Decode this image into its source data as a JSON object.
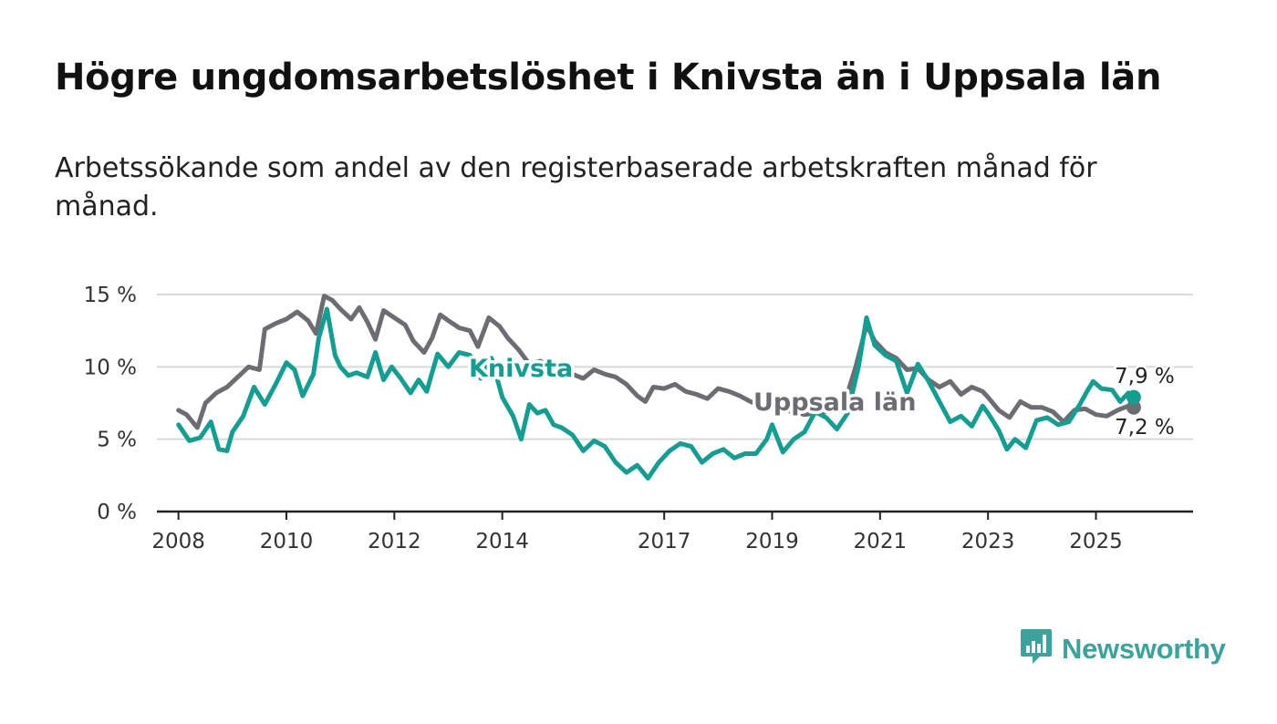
{
  "title": "Högre ungdomsarbetslöshet i Knivsta än i Uppsala län",
  "subtitle": "Arbetssökande som andel av den registerbaserade arbetskraften månad för månad.",
  "brand": {
    "name": "Newsworthy",
    "icon": "newsworthy-logo-icon"
  },
  "colors": {
    "knivsta": "#139e92",
    "uppsala": "#6e6c73",
    "axis": "#222222",
    "grid": "#d9d9d9"
  },
  "chart_data": {
    "type": "line",
    "title": "Högre ungdomsarbetslöshet i Knivsta än i Uppsala län",
    "xlabel": "",
    "ylabel": "",
    "ylim": [
      0,
      15
    ],
    "xlim": [
      2007.6,
      2026.8
    ],
    "y_ticks": [
      {
        "value": 0,
        "label": "0 %"
      },
      {
        "value": 5,
        "label": "5 %"
      },
      {
        "value": 10,
        "label": "10 %"
      },
      {
        "value": 15,
        "label": "15 %"
      }
    ],
    "x_ticks": [
      {
        "value": 2008,
        "label": "2008"
      },
      {
        "value": 2010,
        "label": "2010"
      },
      {
        "value": 2012,
        "label": "2012"
      },
      {
        "value": 2014,
        "label": "2014"
      },
      {
        "value": 2017,
        "label": "2017"
      },
      {
        "value": 2019,
        "label": "2019"
      },
      {
        "value": 2021,
        "label": "2021"
      },
      {
        "value": 2023,
        "label": "2023"
      },
      {
        "value": 2025,
        "label": "2025"
      }
    ],
    "grid": true,
    "series": [
      {
        "name": "Knivsta",
        "color": "#139e92",
        "end_label": "7,9 %",
        "end_value": 7.9,
        "points": [
          [
            2008.0,
            6.0
          ],
          [
            2008.2,
            4.9
          ],
          [
            2008.4,
            5.1
          ],
          [
            2008.6,
            6.2
          ],
          [
            2008.75,
            4.3
          ],
          [
            2008.9,
            4.2
          ],
          [
            2009.0,
            5.5
          ],
          [
            2009.2,
            6.6
          ],
          [
            2009.4,
            8.6
          ],
          [
            2009.6,
            7.4
          ],
          [
            2009.8,
            8.8
          ],
          [
            2010.0,
            10.3
          ],
          [
            2010.15,
            9.8
          ],
          [
            2010.3,
            8.0
          ],
          [
            2010.5,
            9.5
          ],
          [
            2010.6,
            12.0
          ],
          [
            2010.75,
            14.0
          ],
          [
            2010.9,
            10.8
          ],
          [
            2011.0,
            10.0
          ],
          [
            2011.15,
            9.4
          ],
          [
            2011.3,
            9.6
          ],
          [
            2011.5,
            9.3
          ],
          [
            2011.65,
            11.0
          ],
          [
            2011.8,
            9.1
          ],
          [
            2011.95,
            10.0
          ],
          [
            2012.1,
            9.3
          ],
          [
            2012.3,
            8.2
          ],
          [
            2012.45,
            9.1
          ],
          [
            2012.6,
            8.3
          ],
          [
            2012.8,
            10.9
          ],
          [
            2013.0,
            10.0
          ],
          [
            2013.2,
            11.0
          ],
          [
            2013.4,
            10.8
          ],
          [
            2013.6,
            9.2
          ],
          [
            2013.8,
            10.6
          ],
          [
            2014.0,
            7.9
          ],
          [
            2014.2,
            6.6
          ],
          [
            2014.35,
            5.0
          ],
          [
            2014.5,
            7.4
          ],
          [
            2014.65,
            6.8
          ],
          [
            2014.8,
            7.0
          ],
          [
            2014.95,
            6.0
          ],
          [
            2015.1,
            5.8
          ],
          [
            2015.3,
            5.3
          ],
          [
            2015.5,
            4.2
          ],
          [
            2015.7,
            4.9
          ],
          [
            2015.9,
            4.5
          ],
          [
            2016.1,
            3.4
          ],
          [
            2016.3,
            2.7
          ],
          [
            2016.5,
            3.2
          ],
          [
            2016.7,
            2.3
          ],
          [
            2016.9,
            3.4
          ],
          [
            2017.1,
            4.2
          ],
          [
            2017.3,
            4.7
          ],
          [
            2017.5,
            4.5
          ],
          [
            2017.7,
            3.4
          ],
          [
            2017.9,
            4.0
          ],
          [
            2018.1,
            4.3
          ],
          [
            2018.3,
            3.7
          ],
          [
            2018.5,
            4.0
          ],
          [
            2018.7,
            4.0
          ],
          [
            2018.9,
            5.0
          ],
          [
            2019.0,
            6.0
          ],
          [
            2019.2,
            4.1
          ],
          [
            2019.4,
            5.0
          ],
          [
            2019.6,
            5.5
          ],
          [
            2019.8,
            6.9
          ],
          [
            2020.0,
            6.5
          ],
          [
            2020.2,
            5.7
          ],
          [
            2020.4,
            6.8
          ],
          [
            2020.6,
            10.0
          ],
          [
            2020.75,
            13.4
          ],
          [
            2020.9,
            11.5
          ],
          [
            2021.1,
            10.8
          ],
          [
            2021.3,
            10.4
          ],
          [
            2021.5,
            8.2
          ],
          [
            2021.7,
            10.2
          ],
          [
            2021.9,
            9.0
          ],
          [
            2022.1,
            7.6
          ],
          [
            2022.3,
            6.2
          ],
          [
            2022.5,
            6.6
          ],
          [
            2022.7,
            5.9
          ],
          [
            2022.9,
            7.3
          ],
          [
            2023.0,
            6.8
          ],
          [
            2023.2,
            5.6
          ],
          [
            2023.35,
            4.3
          ],
          [
            2023.5,
            5.0
          ],
          [
            2023.7,
            4.4
          ],
          [
            2023.9,
            6.3
          ],
          [
            2024.1,
            6.5
          ],
          [
            2024.3,
            6.0
          ],
          [
            2024.5,
            6.2
          ],
          [
            2024.7,
            7.4
          ],
          [
            2024.85,
            8.4
          ],
          [
            2024.95,
            9.0
          ],
          [
            2025.1,
            8.5
          ],
          [
            2025.3,
            8.4
          ],
          [
            2025.45,
            7.6
          ],
          [
            2025.6,
            8.2
          ],
          [
            2025.7,
            7.9
          ]
        ]
      },
      {
        "name": "Uppsala län",
        "color": "#6e6c73",
        "end_label": "7,2 %",
        "end_value": 7.2,
        "points": [
          [
            2008.0,
            7.0
          ],
          [
            2008.15,
            6.7
          ],
          [
            2008.35,
            5.8
          ],
          [
            2008.5,
            7.5
          ],
          [
            2008.7,
            8.2
          ],
          [
            2008.9,
            8.6
          ],
          [
            2009.1,
            9.3
          ],
          [
            2009.3,
            10.0
          ],
          [
            2009.5,
            9.8
          ],
          [
            2009.6,
            12.6
          ],
          [
            2009.8,
            13.0
          ],
          [
            2010.0,
            13.3
          ],
          [
            2010.2,
            13.8
          ],
          [
            2010.4,
            13.2
          ],
          [
            2010.55,
            12.3
          ],
          [
            2010.7,
            14.9
          ],
          [
            2010.85,
            14.6
          ],
          [
            2011.0,
            14.0
          ],
          [
            2011.2,
            13.3
          ],
          [
            2011.35,
            14.1
          ],
          [
            2011.5,
            13.1
          ],
          [
            2011.65,
            11.9
          ],
          [
            2011.8,
            13.9
          ],
          [
            2012.0,
            13.4
          ],
          [
            2012.2,
            12.9
          ],
          [
            2012.35,
            11.8
          ],
          [
            2012.55,
            11.0
          ],
          [
            2012.7,
            12.0
          ],
          [
            2012.85,
            13.6
          ],
          [
            2013.0,
            13.2
          ],
          [
            2013.2,
            12.7
          ],
          [
            2013.4,
            12.5
          ],
          [
            2013.55,
            11.4
          ],
          [
            2013.75,
            13.4
          ],
          [
            2013.95,
            12.8
          ],
          [
            2014.1,
            12.0
          ],
          [
            2014.3,
            11.2
          ],
          [
            2014.5,
            10.2
          ],
          [
            2014.7,
            10.4
          ],
          [
            2014.9,
            10.0
          ],
          [
            2015.1,
            10.2
          ],
          [
            2015.3,
            9.5
          ],
          [
            2015.5,
            9.2
          ],
          [
            2015.7,
            9.8
          ],
          [
            2015.9,
            9.5
          ],
          [
            2016.1,
            9.3
          ],
          [
            2016.3,
            8.8
          ],
          [
            2016.5,
            8.0
          ],
          [
            2016.65,
            7.6
          ],
          [
            2016.8,
            8.6
          ],
          [
            2017.0,
            8.5
          ],
          [
            2017.2,
            8.8
          ],
          [
            2017.4,
            8.3
          ],
          [
            2017.6,
            8.1
          ],
          [
            2017.8,
            7.8
          ],
          [
            2018.0,
            8.5
          ],
          [
            2018.2,
            8.3
          ],
          [
            2018.4,
            8.0
          ],
          [
            2018.6,
            7.6
          ],
          [
            2018.8,
            7.3
          ],
          [
            2019.0,
            7.2
          ],
          [
            2019.2,
            7.0
          ],
          [
            2019.4,
            6.9
          ],
          [
            2019.6,
            6.7
          ],
          [
            2019.8,
            6.8
          ],
          [
            2020.0,
            6.9
          ],
          [
            2020.2,
            7.3
          ],
          [
            2020.4,
            8.2
          ],
          [
            2020.55,
            10.0
          ],
          [
            2020.75,
            12.9
          ],
          [
            2020.9,
            11.8
          ],
          [
            2021.1,
            11.0
          ],
          [
            2021.3,
            10.6
          ],
          [
            2021.5,
            9.8
          ],
          [
            2021.7,
            9.9
          ],
          [
            2021.9,
            9.1
          ],
          [
            2022.1,
            8.6
          ],
          [
            2022.3,
            9.0
          ],
          [
            2022.5,
            8.1
          ],
          [
            2022.7,
            8.6
          ],
          [
            2022.9,
            8.3
          ],
          [
            2023.0,
            7.9
          ],
          [
            2023.2,
            7.0
          ],
          [
            2023.4,
            6.5
          ],
          [
            2023.6,
            7.6
          ],
          [
            2023.8,
            7.2
          ],
          [
            2024.0,
            7.2
          ],
          [
            2024.2,
            6.9
          ],
          [
            2024.4,
            6.2
          ],
          [
            2024.6,
            7.0
          ],
          [
            2024.8,
            7.1
          ],
          [
            2025.0,
            6.7
          ],
          [
            2025.2,
            6.6
          ],
          [
            2025.4,
            7.0
          ],
          [
            2025.6,
            7.3
          ],
          [
            2025.7,
            7.2
          ]
        ]
      }
    ]
  }
}
